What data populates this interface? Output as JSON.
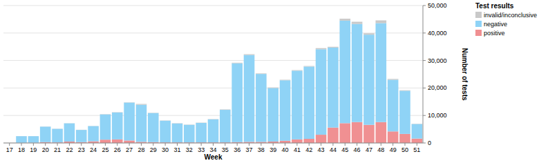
{
  "chart_data": {
    "type": "bar",
    "stacked": true,
    "grid": true,
    "legend": "right",
    "legend_title": "Test results",
    "x_label": "Week",
    "y_label": "Number of tests",
    "categories": [
      "17",
      "18",
      "19",
      "20",
      "21",
      "22",
      "23",
      "24",
      "25",
      "26",
      "27",
      "28",
      "29",
      "30",
      "31",
      "32",
      "33",
      "34",
      "35",
      "36",
      "37",
      "38",
      "39",
      "40",
      "41",
      "42",
      "43",
      "44",
      "45",
      "46",
      "47",
      "48",
      "49",
      "50",
      "51"
    ],
    "series": [
      {
        "name": "invalid/inconclusive",
        "color": "#c9c9c9",
        "values": [
          0,
          20,
          20,
          50,
          50,
          50,
          50,
          50,
          100,
          100,
          100,
          300,
          100,
          100,
          100,
          100,
          100,
          100,
          150,
          200,
          300,
          200,
          200,
          200,
          200,
          200,
          400,
          300,
          700,
          800,
          500,
          1000,
          300,
          200,
          100
        ]
      },
      {
        "name": "negative",
        "color": "#8fd3f6",
        "values": [
          0,
          2430,
          2400,
          5650,
          4950,
          6650,
          4450,
          5550,
          9200,
          9800,
          13800,
          13500,
          10600,
          7900,
          6900,
          6400,
          7100,
          8400,
          11850,
          28700,
          31600,
          24700,
          19500,
          22000,
          25000,
          26300,
          31100,
          29100,
          37300,
          35700,
          32800,
          36000,
          18800,
          15700,
          5300
        ]
      },
      {
        "name": "positive",
        "color": "#f09092",
        "values": [
          0,
          50,
          80,
          300,
          200,
          500,
          300,
          600,
          1200,
          1300,
          900,
          400,
          300,
          200,
          200,
          200,
          200,
          200,
          200,
          300,
          400,
          400,
          500,
          800,
          1300,
          1500,
          3000,
          5600,
          7200,
          7600,
          6600,
          7600,
          4200,
          3300,
          1600
        ]
      }
    ],
    "ylim": [
      0,
      50000
    ],
    "yticks": [
      0,
      {
        "value": 10000,
        "label": "10,000"
      },
      {
        "value": 20000,
        "label": "20,000"
      },
      {
        "value": 30000,
        "label": "30,000"
      },
      {
        "value": 40000,
        "label": "40,000"
      },
      {
        "value": 50000,
        "label": "50,000"
      }
    ]
  }
}
